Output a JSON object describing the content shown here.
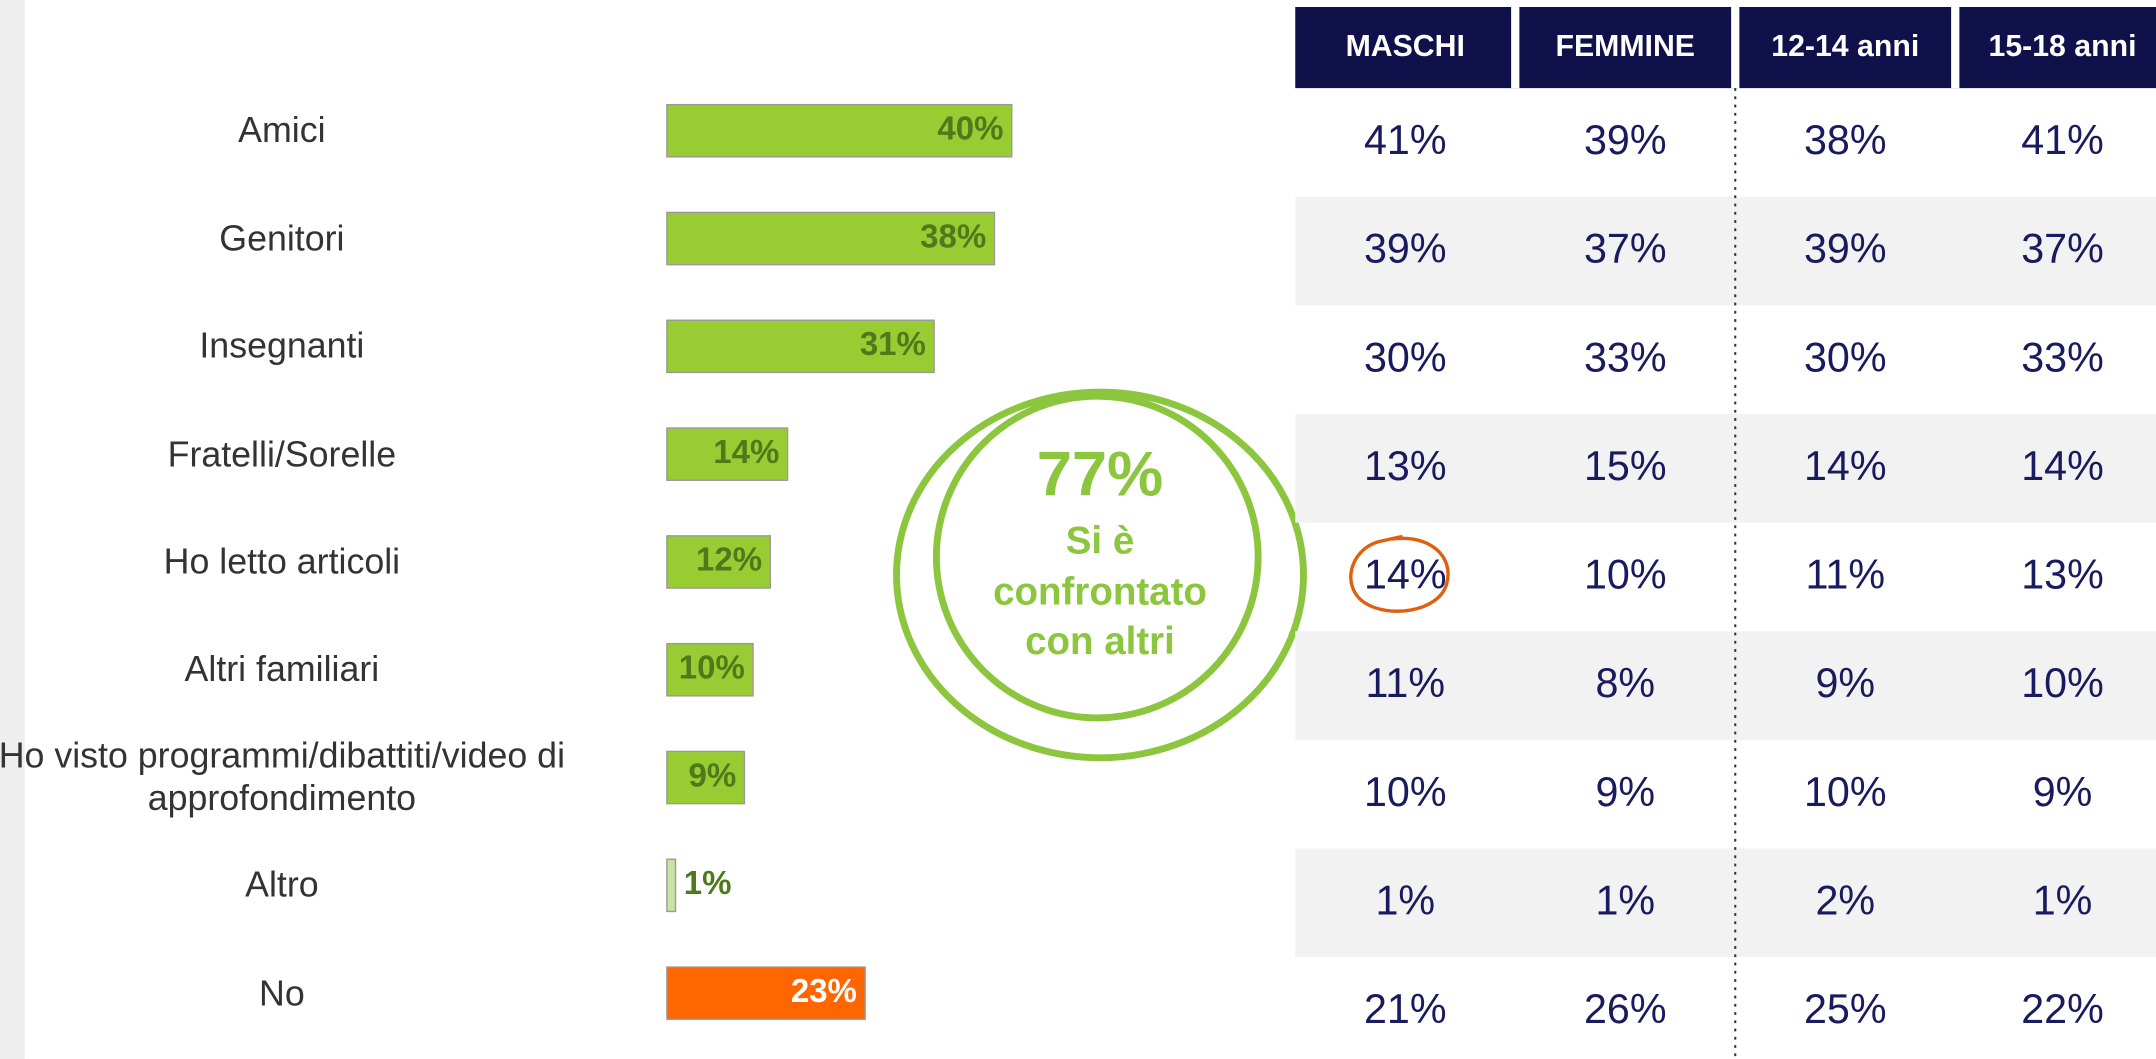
{
  "chart_data": {
    "type": "bar",
    "categories": [
      "Amici",
      "Genitori",
      "Insegnanti",
      "Fratelli/Sorelle",
      "Ho letto articoli",
      "Altri familiari",
      "Ho visto programmi/dibattiti/video di approfondimento",
      "Altro",
      "No"
    ],
    "values": [
      40,
      38,
      31,
      14,
      12,
      10,
      9,
      1,
      23
    ],
    "value_labels": [
      "40%",
      "38%",
      "31%",
      "14%",
      "12%",
      "10%",
      "9%",
      "1%",
      "23%"
    ],
    "colors": [
      "#99cc33",
      "#99cc33",
      "#99cc33",
      "#99cc33",
      "#99cc33",
      "#99cc33",
      "#99cc33",
      "#c8e3a3",
      "#ff6600"
    ]
  },
  "callout": {
    "value": "77%",
    "lines": [
      "Si è",
      "confrontato",
      "con altri"
    ]
  },
  "table": {
    "headers": [
      "MASCHI",
      "FEMMINE",
      "12-14 anni",
      "15-18 anni"
    ],
    "rows": [
      [
        "41%",
        "39%",
        "38%",
        "41%"
      ],
      [
        "39%",
        "37%",
        "39%",
        "37%"
      ],
      [
        "30%",
        "33%",
        "30%",
        "33%"
      ],
      [
        "13%",
        "15%",
        "14%",
        "14%"
      ],
      [
        "14%",
        "10%",
        "11%",
        "13%"
      ],
      [
        "11%",
        "8%",
        "9%",
        "10%"
      ],
      [
        "10%",
        "9%",
        "10%",
        "9%"
      ],
      [
        "1%",
        "1%",
        "2%",
        "1%"
      ],
      [
        "21%",
        "26%",
        "25%",
        "22%"
      ]
    ]
  }
}
